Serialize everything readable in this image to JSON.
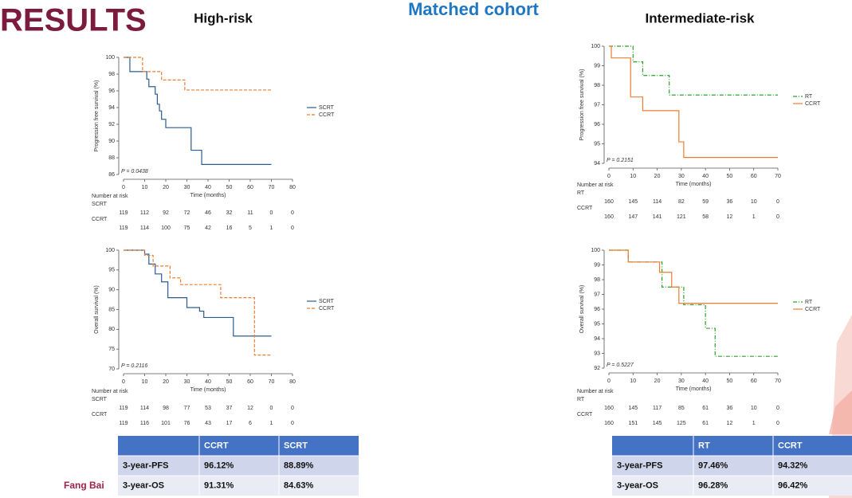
{
  "header": {
    "title": "RESULTS",
    "subtitle": "Matched cohort",
    "left_group": "High-risk",
    "right_group": "Intermediate-risk",
    "author": "Fang Bai"
  },
  "chart_data": [
    {
      "type": "line",
      "ylabel": "Progression free survival (%)",
      "xlabel": "Time (months)",
      "annotation": "P = 0.0438",
      "xlim": [
        0,
        80
      ],
      "xticks": [
        0,
        10,
        20,
        30,
        40,
        50,
        60,
        70,
        80
      ],
      "ylim": [
        86,
        100
      ],
      "yticks": [
        86,
        88,
        90,
        92,
        94,
        96,
        98,
        100
      ],
      "series": [
        {
          "name": "SCRT",
          "color": "#2b5d8f",
          "line_style": "solid",
          "x": [
            0,
            3,
            3,
            11,
            11,
            12,
            12,
            15,
            15,
            16,
            16,
            17,
            17,
            18,
            18,
            20,
            20,
            32,
            32,
            37,
            37,
            70
          ],
          "values": [
            100,
            100,
            98.3,
            98.3,
            97.4,
            97.4,
            96.5,
            96.5,
            95.6,
            95.6,
            94.4,
            94.4,
            93.6,
            93.6,
            92.6,
            92.6,
            91.6,
            91.6,
            88.9,
            88.9,
            87.2,
            87.2
          ]
        },
        {
          "name": "CCRT",
          "color": "#ed7d31",
          "line_style": "dashed",
          "x": [
            0,
            9,
            9,
            18,
            18,
            29,
            29,
            70
          ],
          "values": [
            100,
            100,
            98.3,
            98.3,
            97.3,
            97.3,
            96.1,
            96.1
          ]
        }
      ],
      "risk_table": {
        "title": "Number at risk",
        "rows": [
          {
            "name": "SCRT",
            "values": [
              119,
              112,
              92,
              72,
              46,
              32,
              11,
              0,
              0
            ]
          },
          {
            "name": "CCRT",
            "values": [
              119,
              114,
              100,
              75,
              42,
              16,
              5,
              1,
              0
            ]
          }
        ]
      }
    },
    {
      "type": "line",
      "ylabel": "Overall survival (%)",
      "xlabel": "Time (months)",
      "annotation": "P = 0.2116",
      "xlim": [
        0,
        80
      ],
      "xticks": [
        0,
        10,
        20,
        30,
        40,
        50,
        60,
        70,
        80
      ],
      "ylim": [
        70,
        100
      ],
      "yticks": [
        70,
        75,
        80,
        85,
        90,
        95,
        100
      ],
      "series": [
        {
          "name": "SCRT",
          "color": "#2b5d8f",
          "line_style": "solid",
          "x": [
            0,
            10,
            10,
            12,
            12,
            15,
            15,
            18,
            18,
            21,
            21,
            30,
            30,
            36,
            36,
            38,
            38,
            52,
            52,
            70
          ],
          "values": [
            100,
            100,
            99,
            99,
            96.5,
            96.5,
            94,
            94,
            92,
            92,
            88,
            88,
            85.5,
            85.5,
            84.6,
            84.6,
            83,
            83,
            78.3,
            78.3
          ]
        },
        {
          "name": "CCRT",
          "color": "#ed7d31",
          "line_style": "dashed",
          "x": [
            0,
            10,
            10,
            14,
            14,
            22,
            22,
            27,
            27,
            46,
            46,
            62,
            62,
            70
          ],
          "values": [
            100,
            100,
            98.7,
            98.7,
            96,
            96,
            93,
            93,
            91.3,
            91.3,
            88,
            88,
            73.5,
            73.5
          ]
        }
      ],
      "risk_table": {
        "title": "Number at risk",
        "rows": [
          {
            "name": "SCRT",
            "values": [
              119,
              114,
              98,
              77,
              53,
              37,
              12,
              0,
              0
            ]
          },
          {
            "name": "CCRT",
            "values": [
              119,
              116,
              101,
              76,
              43,
              17,
              6,
              1,
              0
            ]
          }
        ]
      }
    },
    {
      "type": "line",
      "ylabel": "Progression free survival (%)",
      "xlabel": "Time (months)",
      "annotation": "P = 0.2151",
      "xlim": [
        0,
        70
      ],
      "xticks": [
        0,
        10,
        20,
        30,
        40,
        50,
        60,
        70
      ],
      "ylim": [
        94,
        100
      ],
      "yticks": [
        94,
        95,
        96,
        97,
        98,
        99,
        100
      ],
      "series": [
        {
          "name": "RT",
          "color": "#2ca02c",
          "line_style": "dashdot",
          "x": [
            0,
            10,
            10,
            14,
            14,
            25,
            25,
            70
          ],
          "values": [
            100,
            100,
            99.2,
            99.2,
            98.5,
            98.5,
            97.5,
            97.5
          ]
        },
        {
          "name": "CCRT",
          "color": "#ed7d31",
          "line_style": "solid",
          "x": [
            0,
            1,
            1,
            9,
            9,
            14,
            14,
            29,
            29,
            31,
            31,
            70
          ],
          "values": [
            100,
            100,
            99.4,
            99.4,
            97.4,
            97.4,
            96.7,
            96.7,
            95.1,
            95.1,
            94.3,
            94.3
          ]
        }
      ],
      "risk_table": {
        "title": "Number at risk",
        "rows": [
          {
            "name": "RT",
            "values": [
              160,
              145,
              114,
              82,
              59,
              36,
              10,
              0
            ]
          },
          {
            "name": "CCRT",
            "values": [
              160,
              147,
              141,
              121,
              58,
              12,
              1,
              0
            ]
          }
        ]
      }
    },
    {
      "type": "line",
      "ylabel": "Overall survival (%)",
      "xlabel": "Time (months)",
      "annotation": "P = 0.5227",
      "xlim": [
        0,
        70
      ],
      "xticks": [
        0,
        10,
        20,
        30,
        40,
        50,
        60,
        70
      ],
      "ylim": [
        92,
        100
      ],
      "yticks": [
        92,
        93,
        94,
        95,
        96,
        97,
        98,
        99,
        100
      ],
      "series": [
        {
          "name": "RT",
          "color": "#2ca02c",
          "line_style": "dashdot",
          "x": [
            0,
            8,
            8,
            22,
            22,
            31,
            31,
            40,
            40,
            44,
            44,
            70
          ],
          "values": [
            100,
            100,
            99.2,
            99.2,
            97.5,
            97.5,
            96.3,
            96.3,
            94.7,
            94.7,
            92.8,
            92.8
          ]
        },
        {
          "name": "CCRT",
          "color": "#ed7d31",
          "line_style": "solid",
          "x": [
            0,
            8,
            8,
            21,
            21,
            26,
            26,
            29,
            29,
            70
          ],
          "values": [
            100,
            100,
            99.2,
            99.2,
            98.5,
            98.5,
            97.5,
            97.5,
            96.4,
            96.4
          ]
        }
      ],
      "risk_table": {
        "title": "Number at risk",
        "rows": [
          {
            "name": "RT",
            "values": [
              160,
              145,
              117,
              85,
              61,
              36,
              10,
              0
            ]
          },
          {
            "name": "CCRT",
            "values": [
              160,
              151,
              145,
              125,
              61,
              12,
              1,
              0
            ]
          }
        ]
      }
    }
  ],
  "tables": [
    {
      "header": [
        "CCRT",
        "SCRT"
      ],
      "rows": [
        [
          "3-year-PFS",
          "96.12%",
          "88.89%"
        ],
        [
          "3-year-OS",
          "91.31%",
          "84.63%"
        ]
      ]
    },
    {
      "header": [
        "RT",
        "CCRT"
      ],
      "rows": [
        [
          "3-year-PFS",
          "97.46%",
          "94.32%"
        ],
        [
          "3-year-OS",
          "96.28%",
          "96.42%"
        ]
      ]
    }
  ]
}
